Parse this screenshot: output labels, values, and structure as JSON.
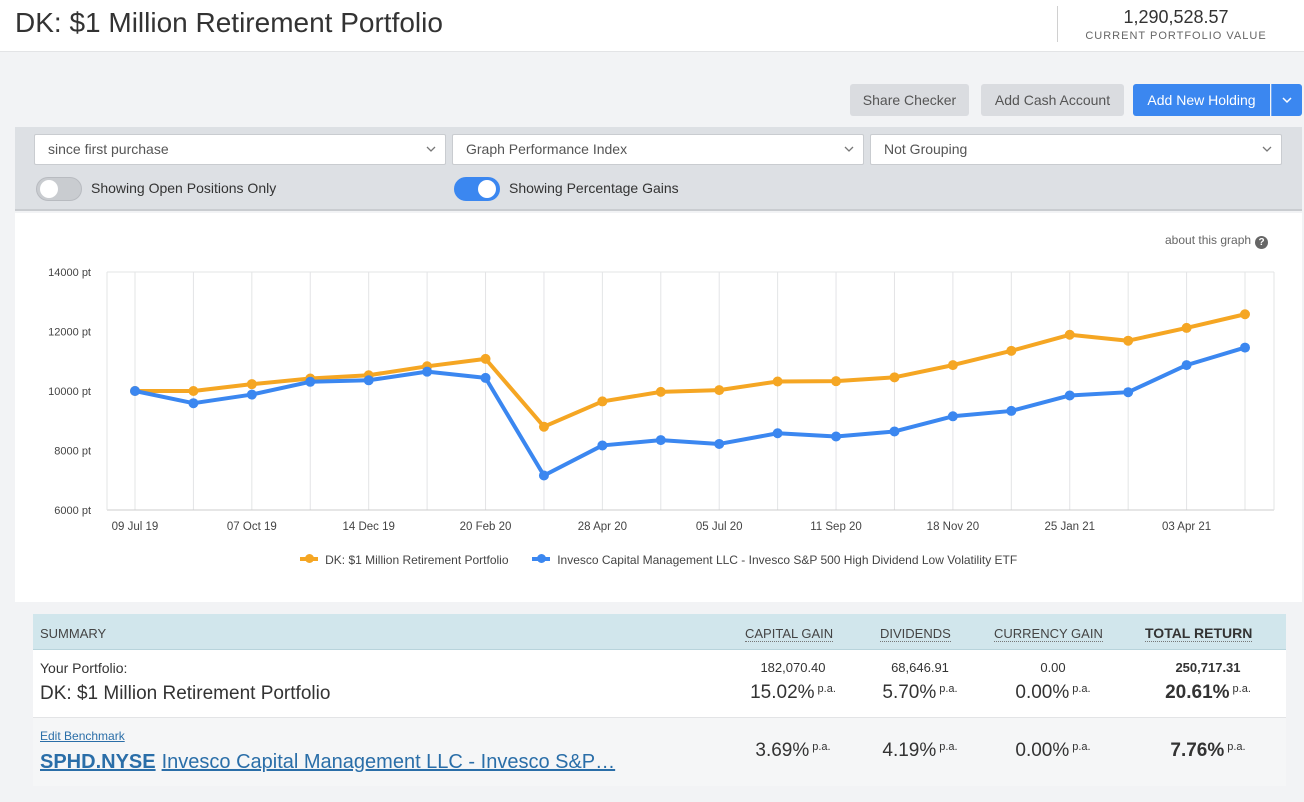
{
  "header": {
    "title": "DK: $1 Million Retirement Portfolio",
    "portfolio_value": "1,290,528.57",
    "portfolio_value_label": "CURRENT PORTFOLIO VALUE"
  },
  "toolbar": {
    "share_checker": "Share Checker",
    "add_cash_account": "Add Cash Account",
    "add_new_holding": "Add New Holding"
  },
  "filters": {
    "period": "since first purchase",
    "graph_type": "Graph Performance Index",
    "grouping": "Not Grouping",
    "open_positions_label": "Showing Open Positions Only",
    "open_positions_on": false,
    "percentage_gains_label": "Showing Percentage Gains",
    "percentage_gains_on": true
  },
  "about_graph": "about this graph",
  "colors": {
    "portfolio": "#f5a623",
    "benchmark": "#3b87f0",
    "accent": "#3b87f0"
  },
  "chart_data": {
    "type": "line",
    "y_ticks": [
      "14000 pt",
      "12000 pt",
      "10000 pt",
      "8000 pt",
      "6000 pt"
    ],
    "y_tick_values": [
      14000,
      12000,
      10000,
      8000,
      6000
    ],
    "ylim": [
      6000,
      14000
    ],
    "x_tick_labels": [
      "09 Jul 19",
      "07 Oct 19",
      "14 Dec 19",
      "20 Feb 20",
      "28 Apr 20",
      "05 Jul 20",
      "11 Sep 20",
      "18 Nov 20",
      "25 Jan 21",
      "03 Apr 21"
    ],
    "x_tick_index": [
      0,
      2,
      4,
      6,
      8,
      10,
      12,
      14,
      16,
      18
    ],
    "point_count": 20,
    "series": [
      {
        "name": "DK: $1 Million Retirement Portfolio",
        "values": [
          10000,
          10000,
          10230,
          10420,
          10530,
          10830,
          11080,
          8800,
          9650,
          9970,
          10030,
          10320,
          10330,
          10460,
          10870,
          11350,
          11890,
          11690,
          12120,
          12580
        ]
      },
      {
        "name": "Invesco Capital Management LLC - Invesco S&P 500 High Dividend Low Volatility ETF",
        "values": [
          10000,
          9590,
          9880,
          10310,
          10360,
          10650,
          10440,
          7160,
          8170,
          8350,
          8220,
          8580,
          8470,
          8640,
          9150,
          9330,
          9850,
          9960,
          10870,
          11460
        ]
      }
    ]
  },
  "summary": {
    "headers": {
      "summary": "SUMMARY",
      "capital_gain": "CAPITAL GAIN",
      "dividends": "DIVIDENDS",
      "currency_gain": "CURRENCY GAIN",
      "total_return": "TOTAL RETURN"
    },
    "portfolio": {
      "label": "Your Portfolio:",
      "name": "DK: $1 Million Retirement Portfolio",
      "capital_gain_amount": "182,070.40",
      "capital_gain_pct": "15.02%",
      "dividends_amount": "68,646.91",
      "dividends_pct": "5.70%",
      "currency_gain_amount": "0.00",
      "currency_gain_pct": "0.00%",
      "total_return_amount": "250,717.31",
      "total_return_pct": "20.61%"
    },
    "benchmark": {
      "edit_label": "Edit Benchmark",
      "ticker": "SPHD.NYSE",
      "name": "Invesco Capital Management LLC - Invesco S&P…",
      "capital_gain_pct": "3.69%",
      "dividends_pct": "4.19%",
      "currency_gain_pct": "0.00%",
      "total_return_pct": "7.76%"
    },
    "pa_label": "p.a."
  }
}
